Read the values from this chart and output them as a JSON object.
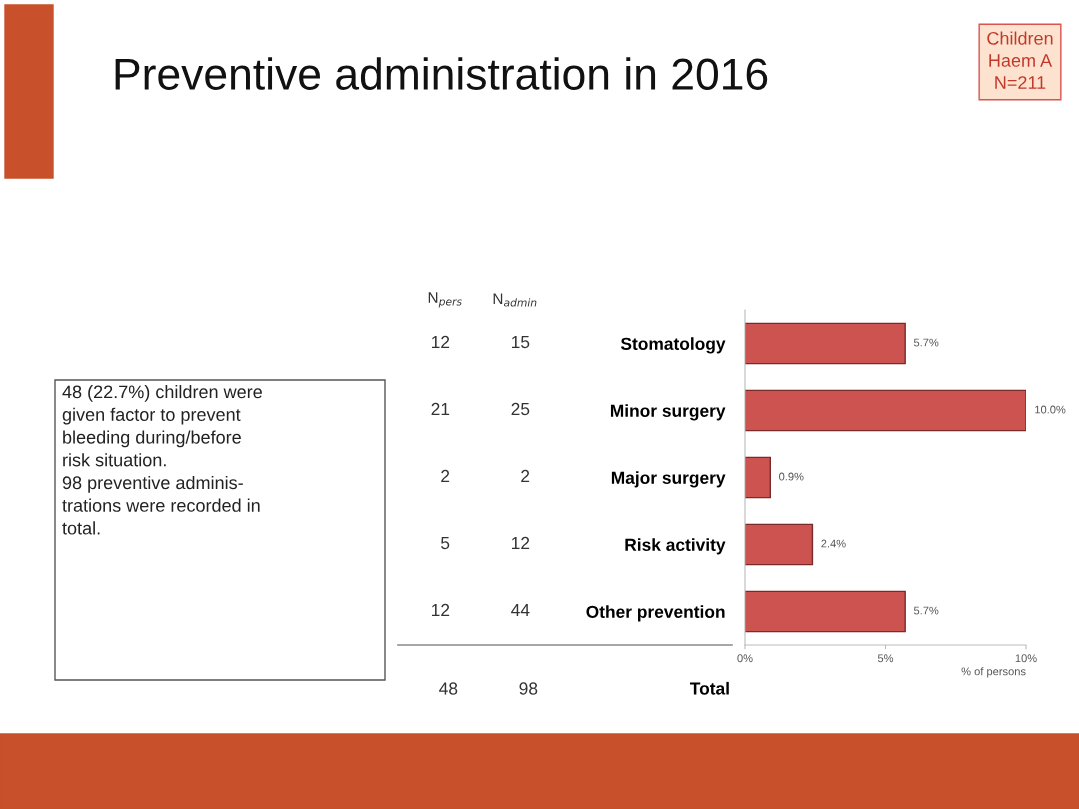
{
  "chart_data": {
    "type": "bar",
    "orientation": "horizontal",
    "title": "Preventive administration in 2016",
    "categories": [
      "Stomatology",
      "Minor surgery",
      "Major surgery",
      "Risk activity",
      "Other prevention"
    ],
    "values": [
      5.7,
      10.0,
      0.9,
      2.4,
      5.7
    ],
    "value_labels": [
      "5.7%",
      "10.0%",
      "0.9%",
      "2.4%",
      "5.7%"
    ],
    "color": "#cd5350",
    "xlim": [
      0,
      10
    ],
    "xticks": [
      {
        "value": 0,
        "label": "0%"
      },
      {
        "value": 5,
        "label": "5%"
      },
      {
        "value": 10,
        "label": "10%"
      }
    ],
    "xlabel": "% of persons",
    "grid": false,
    "legend": false,
    "annotations": [
      "N$_{pers}$",
      "N$_{admin}$",
      "12",
      "15",
      "21",
      "25",
      "2",
      "2",
      "5",
      "12",
      "12",
      "44",
      "48",
      "98",
      "Total",
      "48 (22.7%) children were\ngiven factor to prevent\nbleeding during/before\nrisk situation.\n98 preventive adminis-\ntrations were recorded in\ntotal.",
      "Children\nHaem A\nN=211"
    ]
  }
}
